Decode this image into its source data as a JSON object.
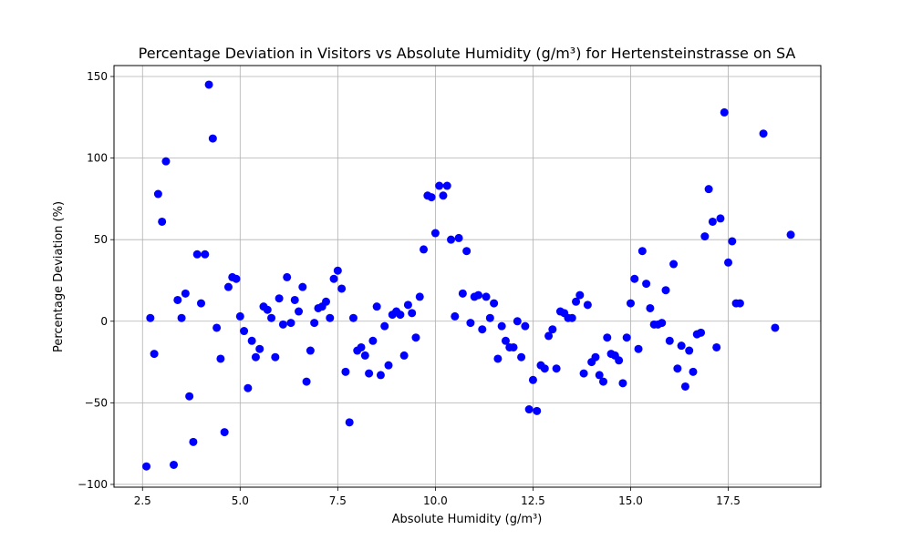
{
  "chart_data": {
    "type": "scatter",
    "title": "Percentage Deviation in Visitors vs Absolute Humidity (g/m³) for Hertensteinstrasse on SA",
    "xlabel": "Absolute Humidity (g/m³)",
    "ylabel": "Percentage Deviation (%)",
    "xlim": [
      1.77,
      19.87
    ],
    "ylim": [
      -101.7,
      156.7
    ],
    "xticks": [
      2.5,
      5.0,
      7.5,
      10.0,
      12.5,
      15.0,
      17.5
    ],
    "xtick_labels": [
      "2.5",
      "5.0",
      "7.5",
      "10.0",
      "12.5",
      "15.0",
      "17.5"
    ],
    "yticks": [
      -100,
      -50,
      0,
      50,
      100,
      150
    ],
    "ytick_labels": [
      "−100",
      "−50",
      "0",
      "50",
      "100",
      "150"
    ],
    "grid": true,
    "color": "#0000ff",
    "points": [
      [
        2.6,
        -89
      ],
      [
        2.7,
        2
      ],
      [
        2.8,
        -20
      ],
      [
        2.9,
        78
      ],
      [
        3.0,
        61
      ],
      [
        3.1,
        98
      ],
      [
        3.3,
        -88
      ],
      [
        3.4,
        13
      ],
      [
        3.5,
        2
      ],
      [
        3.6,
        17
      ],
      [
        3.7,
        -46
      ],
      [
        3.8,
        -74
      ],
      [
        3.9,
        41
      ],
      [
        4.0,
        11
      ],
      [
        4.1,
        41
      ],
      [
        4.2,
        145
      ],
      [
        4.3,
        112
      ],
      [
        4.4,
        -4
      ],
      [
        4.5,
        -23
      ],
      [
        4.6,
        -68
      ],
      [
        4.7,
        21
      ],
      [
        4.8,
        27
      ],
      [
        4.9,
        26
      ],
      [
        5.0,
        3
      ],
      [
        5.1,
        -6
      ],
      [
        5.2,
        -41
      ],
      [
        5.3,
        -12
      ],
      [
        5.4,
        -22
      ],
      [
        5.5,
        -17
      ],
      [
        5.6,
        9
      ],
      [
        5.7,
        7
      ],
      [
        5.8,
        2
      ],
      [
        5.9,
        -22
      ],
      [
        6.0,
        14
      ],
      [
        6.1,
        -2
      ],
      [
        6.2,
        27
      ],
      [
        6.3,
        -1
      ],
      [
        6.4,
        13
      ],
      [
        6.5,
        6
      ],
      [
        6.6,
        21
      ],
      [
        6.7,
        -37
      ],
      [
        6.8,
        -18
      ],
      [
        6.9,
        -1
      ],
      [
        7.0,
        8
      ],
      [
        7.1,
        9
      ],
      [
        7.2,
        12
      ],
      [
        7.3,
        2
      ],
      [
        7.4,
        26
      ],
      [
        7.5,
        31
      ],
      [
        7.6,
        20
      ],
      [
        7.7,
        -31
      ],
      [
        7.8,
        -62
      ],
      [
        7.9,
        2
      ],
      [
        8.0,
        -18
      ],
      [
        8.1,
        -16
      ],
      [
        8.2,
        -21
      ],
      [
        8.3,
        -32
      ],
      [
        8.4,
        -12
      ],
      [
        8.5,
        9
      ],
      [
        8.6,
        -33
      ],
      [
        8.7,
        -3
      ],
      [
        8.8,
        -27
      ],
      [
        8.9,
        4
      ],
      [
        9.0,
        6
      ],
      [
        9.1,
        4
      ],
      [
        9.2,
        -21
      ],
      [
        9.3,
        10
      ],
      [
        9.4,
        5
      ],
      [
        9.5,
        -10
      ],
      [
        9.6,
        15
      ],
      [
        9.7,
        44
      ],
      [
        9.8,
        77
      ],
      [
        9.9,
        76
      ],
      [
        10.0,
        54
      ],
      [
        10.1,
        83
      ],
      [
        10.2,
        77
      ],
      [
        10.3,
        83
      ],
      [
        10.4,
        50
      ],
      [
        10.5,
        3
      ],
      [
        10.6,
        51
      ],
      [
        10.7,
        17
      ],
      [
        10.8,
        43
      ],
      [
        10.9,
        -1
      ],
      [
        11.0,
        15
      ],
      [
        11.1,
        16
      ],
      [
        11.2,
        -5
      ],
      [
        11.3,
        15
      ],
      [
        11.4,
        2
      ],
      [
        11.5,
        11
      ],
      [
        11.6,
        -23
      ],
      [
        11.7,
        -3
      ],
      [
        11.8,
        -12
      ],
      [
        11.9,
        -16
      ],
      [
        12.0,
        -16
      ],
      [
        12.1,
        0
      ],
      [
        12.2,
        -22
      ],
      [
        12.3,
        -3
      ],
      [
        12.4,
        -54
      ],
      [
        12.5,
        -36
      ],
      [
        12.6,
        -55
      ],
      [
        12.7,
        -27
      ],
      [
        12.8,
        -29
      ],
      [
        12.9,
        -9
      ],
      [
        13.0,
        -5
      ],
      [
        13.1,
        -29
      ],
      [
        13.2,
        6
      ],
      [
        13.3,
        5
      ],
      [
        13.4,
        2
      ],
      [
        13.5,
        2
      ],
      [
        13.6,
        12
      ],
      [
        13.7,
        16
      ],
      [
        13.8,
        -32
      ],
      [
        13.9,
        10
      ],
      [
        14.0,
        -25
      ],
      [
        14.1,
        -22
      ],
      [
        14.2,
        -33
      ],
      [
        14.3,
        -37
      ],
      [
        14.4,
        -10
      ],
      [
        14.5,
        -20
      ],
      [
        14.6,
        -21
      ],
      [
        14.7,
        -24
      ],
      [
        14.8,
        -38
      ],
      [
        14.9,
        -10
      ],
      [
        15.0,
        11
      ],
      [
        15.1,
        26
      ],
      [
        15.2,
        -17
      ],
      [
        15.3,
        43
      ],
      [
        15.4,
        23
      ],
      [
        15.5,
        8
      ],
      [
        15.6,
        -2
      ],
      [
        15.7,
        -2
      ],
      [
        15.8,
        -1
      ],
      [
        15.9,
        19
      ],
      [
        16.0,
        -12
      ],
      [
        16.1,
        35
      ],
      [
        16.2,
        -29
      ],
      [
        16.3,
        -15
      ],
      [
        16.4,
        -40
      ],
      [
        16.5,
        -18
      ],
      [
        16.6,
        -31
      ],
      [
        16.7,
        -8
      ],
      [
        16.8,
        -7
      ],
      [
        16.9,
        52
      ],
      [
        17.0,
        81
      ],
      [
        17.1,
        61
      ],
      [
        17.2,
        -16
      ],
      [
        17.3,
        63
      ],
      [
        17.4,
        128
      ],
      [
        17.5,
        36
      ],
      [
        17.6,
        49
      ],
      [
        17.7,
        11
      ],
      [
        17.8,
        11
      ],
      [
        18.4,
        115
      ],
      [
        18.7,
        -4
      ],
      [
        19.1,
        53
      ]
    ]
  }
}
